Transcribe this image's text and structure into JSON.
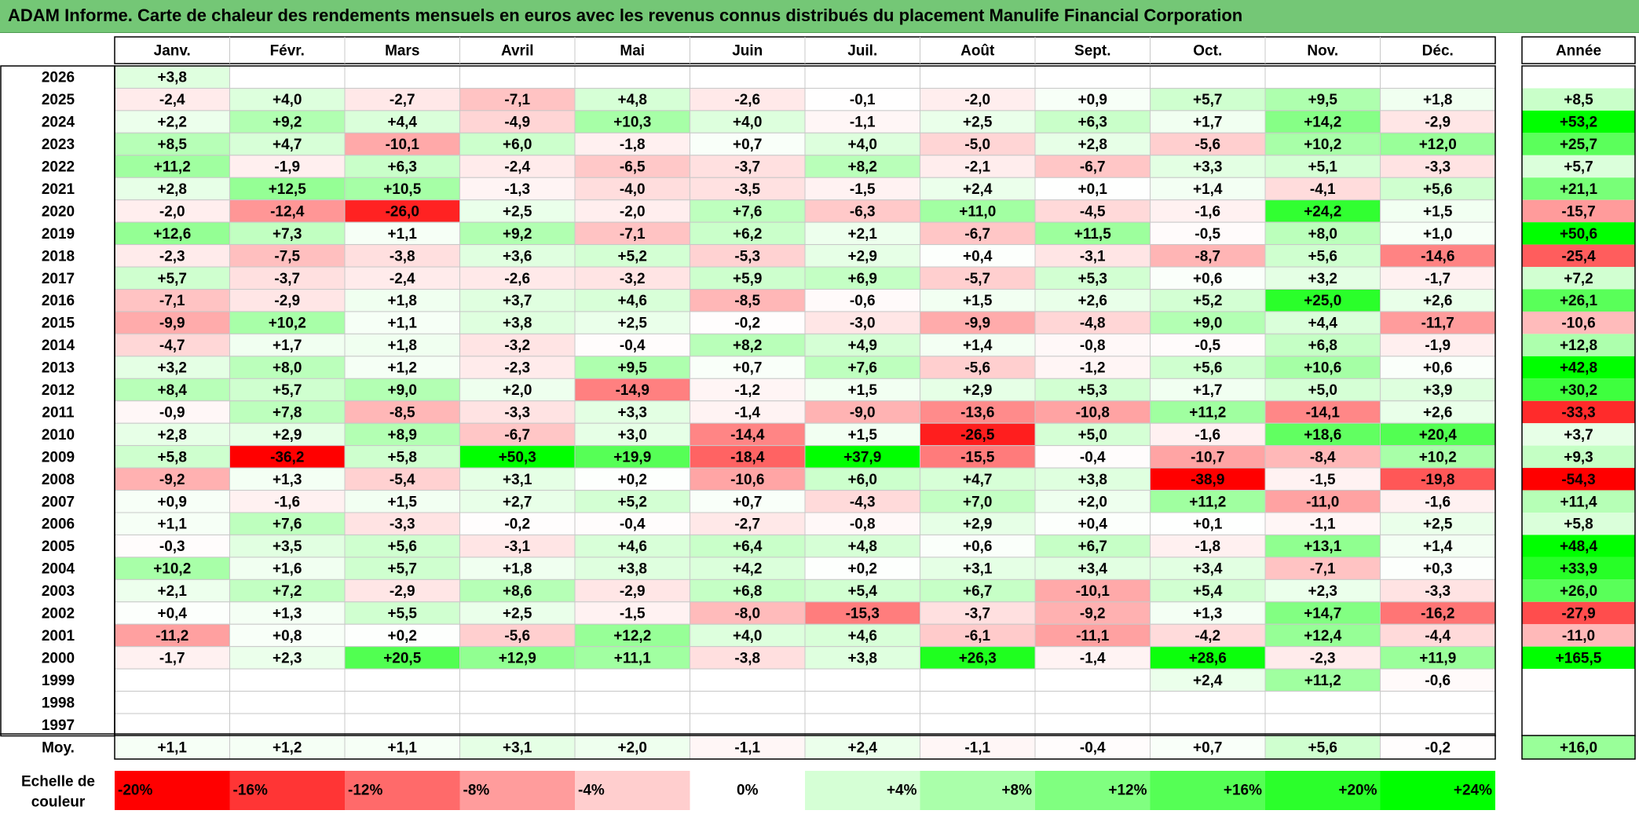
{
  "title": "ADAM Informe. Carte de chaleur des rendements mensuels en euros avec les revenus connus distribués du placement Manulife Financial Corporation",
  "chart_data": {
    "type": "heatmap",
    "title": "ADAM Informe. Carte de chaleur des rendements mensuels en euros avec les revenus connus distribués du placement Manulife Financial Corporation",
    "columns": [
      "Janv.",
      "Févr.",
      "Mars",
      "Avril",
      "Mai",
      "Juin",
      "Juil.",
      "Août",
      "Sept.",
      "Oct.",
      "Nov.",
      "Déc."
    ],
    "year_header": "Année",
    "rows": [
      {
        "year": "2026",
        "values": [
          "+3,8",
          "",
          "",
          "",
          "",
          "",
          "",
          "",
          "",
          "",
          "",
          ""
        ],
        "annual": ""
      },
      {
        "year": "2025",
        "values": [
          "-2,4",
          "+4,0",
          "-2,7",
          "-7,1",
          "+4,8",
          "-2,6",
          "-0,1",
          "-2,0",
          "+0,9",
          "+5,7",
          "+9,5",
          "+1,8"
        ],
        "annual": "+8,5"
      },
      {
        "year": "2024",
        "values": [
          "+2,2",
          "+9,2",
          "+4,4",
          "-4,9",
          "+10,3",
          "+4,0",
          "-1,1",
          "+2,5",
          "+6,3",
          "+1,7",
          "+14,2",
          "-2,9"
        ],
        "annual": "+53,2"
      },
      {
        "year": "2023",
        "values": [
          "+8,5",
          "+4,7",
          "-10,1",
          "+6,0",
          "-1,8",
          "+0,7",
          "+4,0",
          "-5,0",
          "+2,8",
          "-5,6",
          "+10,2",
          "+12,0"
        ],
        "annual": "+25,7"
      },
      {
        "year": "2022",
        "values": [
          "+11,2",
          "-1,9",
          "+6,3",
          "-2,4",
          "-6,5",
          "-3,7",
          "+8,2",
          "-2,1",
          "-6,7",
          "+3,3",
          "+5,1",
          "-3,3"
        ],
        "annual": "+5,7"
      },
      {
        "year": "2021",
        "values": [
          "+2,8",
          "+12,5",
          "+10,5",
          "-1,3",
          "-4,0",
          "-3,5",
          "-1,5",
          "+2,4",
          "+0,1",
          "+1,4",
          "-4,1",
          "+5,6"
        ],
        "annual": "+21,1"
      },
      {
        "year": "2020",
        "values": [
          "-2,0",
          "-12,4",
          "-26,0",
          "+2,5",
          "-2,0",
          "+7,6",
          "-6,3",
          "+11,0",
          "-4,5",
          "-1,6",
          "+24,2",
          "+1,5"
        ],
        "annual": "-15,7"
      },
      {
        "year": "2019",
        "values": [
          "+12,6",
          "+7,3",
          "+1,1",
          "+9,2",
          "-7,1",
          "+6,2",
          "+2,1",
          "-6,7",
          "+11,5",
          "-0,5",
          "+8,0",
          "+1,0"
        ],
        "annual": "+50,6"
      },
      {
        "year": "2018",
        "values": [
          "-2,3",
          "-7,5",
          "-3,8",
          "+3,6",
          "+5,2",
          "-5,3",
          "+2,9",
          "+0,4",
          "-3,1",
          "-8,7",
          "+5,6",
          "-14,6"
        ],
        "annual": "-25,4"
      },
      {
        "year": "2017",
        "values": [
          "+5,7",
          "-3,7",
          "-2,4",
          "-2,6",
          "-3,2",
          "+5,9",
          "+6,9",
          "-5,7",
          "+5,3",
          "+0,6",
          "+3,2",
          "-1,7"
        ],
        "annual": "+7,2"
      },
      {
        "year": "2016",
        "values": [
          "-7,1",
          "-2,9",
          "+1,8",
          "+3,7",
          "+4,6",
          "-8,5",
          "-0,6",
          "+1,5",
          "+2,6",
          "+5,2",
          "+25,0",
          "+2,6"
        ],
        "annual": "+26,1"
      },
      {
        "year": "2015",
        "values": [
          "-9,9",
          "+10,2",
          "+1,1",
          "+3,8",
          "+2,5",
          "-0,2",
          "-3,0",
          "-9,9",
          "-4,8",
          "+9,0",
          "+4,4",
          "-11,7"
        ],
        "annual": "-10,6"
      },
      {
        "year": "2014",
        "values": [
          "-4,7",
          "+1,7",
          "+1,8",
          "-3,2",
          "-0,4",
          "+8,2",
          "+4,9",
          "+1,4",
          "-0,8",
          "-0,5",
          "+6,8",
          "-1,9"
        ],
        "annual": "+12,8"
      },
      {
        "year": "2013",
        "values": [
          "+3,2",
          "+8,0",
          "+1,2",
          "-2,3",
          "+9,5",
          "+0,7",
          "+7,6",
          "-5,6",
          "-1,2",
          "+5,6",
          "+10,6",
          "+0,6"
        ],
        "annual": "+42,8"
      },
      {
        "year": "2012",
        "values": [
          "+8,4",
          "+5,7",
          "+9,0",
          "+2,0",
          "-14,9",
          "-1,2",
          "+1,5",
          "+2,9",
          "+5,3",
          "+1,7",
          "+5,0",
          "+3,9"
        ],
        "annual": "+30,2"
      },
      {
        "year": "2011",
        "values": [
          "-0,9",
          "+7,8",
          "-8,5",
          "-3,3",
          "+3,3",
          "-1,4",
          "-9,0",
          "-13,6",
          "-10,8",
          "+11,2",
          "-14,1",
          "+2,6"
        ],
        "annual": "-33,3"
      },
      {
        "year": "2010",
        "values": [
          "+2,8",
          "+2,9",
          "+8,9",
          "-6,7",
          "+3,0",
          "-14,4",
          "+1,5",
          "-26,5",
          "+5,0",
          "-1,6",
          "+18,6",
          "+20,4"
        ],
        "annual": "+3,7"
      },
      {
        "year": "2009",
        "values": [
          "+5,8",
          "-36,2",
          "+5,8",
          "+50,3",
          "+19,9",
          "-18,4",
          "+37,9",
          "-15,5",
          "-0,4",
          "-10,7",
          "-8,4",
          "+10,2"
        ],
        "annual": "+9,3"
      },
      {
        "year": "2008",
        "values": [
          "-9,2",
          "+1,3",
          "-5,4",
          "+3,1",
          "+0,2",
          "-10,6",
          "+6,0",
          "+4,7",
          "+3,8",
          "-38,9",
          "-1,5",
          "-19,8"
        ],
        "annual": "-54,3"
      },
      {
        "year": "2007",
        "values": [
          "+0,9",
          "-1,6",
          "+1,5",
          "+2,7",
          "+5,2",
          "+0,7",
          "-4,3",
          "+7,0",
          "+2,0",
          "+11,2",
          "-11,0",
          "-1,6"
        ],
        "annual": "+11,4"
      },
      {
        "year": "2006",
        "values": [
          "+1,1",
          "+7,6",
          "-3,3",
          "-0,2",
          "-0,4",
          "-2,7",
          "-0,8",
          "+2,9",
          "+0,4",
          "+0,1",
          "-1,1",
          "+2,5"
        ],
        "annual": "+5,8"
      },
      {
        "year": "2005",
        "values": [
          "-0,3",
          "+3,5",
          "+5,6",
          "-3,1",
          "+4,6",
          "+6,4",
          "+4,8",
          "+0,6",
          "+6,7",
          "-1,8",
          "+13,1",
          "+1,4"
        ],
        "annual": "+48,4"
      },
      {
        "year": "2004",
        "values": [
          "+10,2",
          "+1,6",
          "+5,7",
          "+1,8",
          "+3,8",
          "+4,2",
          "+0,2",
          "+3,1",
          "+3,4",
          "+3,4",
          "-7,1",
          "+0,3"
        ],
        "annual": "+33,9"
      },
      {
        "year": "2003",
        "values": [
          "+2,1",
          "+7,2",
          "-2,9",
          "+8,6",
          "-2,9",
          "+6,8",
          "+5,4",
          "+6,7",
          "-10,1",
          "+5,4",
          "+2,3",
          "-3,3"
        ],
        "annual": "+26,0"
      },
      {
        "year": "2002",
        "values": [
          "+0,4",
          "+1,3",
          "+5,5",
          "+2,5",
          "-1,5",
          "-8,0",
          "-15,3",
          "-3,7",
          "-9,2",
          "+1,3",
          "+14,7",
          "-16,2"
        ],
        "annual": "-27,9"
      },
      {
        "year": "2001",
        "values": [
          "-11,2",
          "+0,8",
          "+0,2",
          "-5,6",
          "+12,2",
          "+4,0",
          "+4,6",
          "-6,1",
          "-11,1",
          "-4,2",
          "+12,4",
          "-4,4"
        ],
        "annual": "-11,0"
      },
      {
        "year": "2000",
        "values": [
          "-1,7",
          "+2,3",
          "+20,5",
          "+12,9",
          "+11,1",
          "-3,8",
          "+3,8",
          "+26,3",
          "-1,4",
          "+28,6",
          "-2,3",
          "+11,9"
        ],
        "annual": "+165,5"
      },
      {
        "year": "1999",
        "values": [
          "",
          "",
          "",
          "",
          "",
          "",
          "",
          "",
          "",
          "+2,4",
          "+11,2",
          "-0,6"
        ],
        "annual": ""
      },
      {
        "year": "1998",
        "values": [
          "",
          "",
          "",
          "",
          "",
          "",
          "",
          "",
          "",
          "",
          "",
          ""
        ],
        "annual": ""
      },
      {
        "year": "1997",
        "values": [
          "",
          "",
          "",
          "",
          "",
          "",
          "",
          "",
          "",
          "",
          "",
          ""
        ],
        "annual": ""
      }
    ],
    "average": {
      "label": "Moy.",
      "values": [
        "+1,1",
        "+1,2",
        "+1,1",
        "+3,1",
        "+2,0",
        "-1,1",
        "+2,4",
        "-1,1",
        "-0,4",
        "+0,7",
        "+5,6",
        "-0,2"
      ],
      "annual": "+16,0"
    },
    "color_scale": {
      "label_line1": "Echelle de",
      "label_line2": "couleur",
      "stops": [
        {
          "label": "-20%",
          "value": -20,
          "color": "#ff0000"
        },
        {
          "label": "-16%",
          "value": -16,
          "color": "#ff3535"
        },
        {
          "label": "-12%",
          "value": -12,
          "color": "#ff6a6a"
        },
        {
          "label": "-8%",
          "value": -8,
          "color": "#ff9c9c"
        },
        {
          "label": "-4%",
          "value": -4,
          "color": "#ffcece"
        },
        {
          "label": "0%",
          "value": 0,
          "color": "#ffffff"
        },
        {
          "label": "+4%",
          "value": 4,
          "color": "#d5ffd5"
        },
        {
          "label": "+8%",
          "value": 8,
          "color": "#aaffaa"
        },
        {
          "label": "+12%",
          "value": 12,
          "color": "#80ff80"
        },
        {
          "label": "+16%",
          "value": 16,
          "color": "#55ff55"
        },
        {
          "label": "+20%",
          "value": 20,
          "color": "#2bff2b"
        },
        {
          "label": "+24%",
          "value": 24,
          "color": "#00ff00"
        }
      ]
    },
    "colors": {
      "title_background": "#74c776",
      "negative_max": "#ff0000",
      "positive_max": "#00ff00",
      "neutral": "#ffffff"
    }
  }
}
